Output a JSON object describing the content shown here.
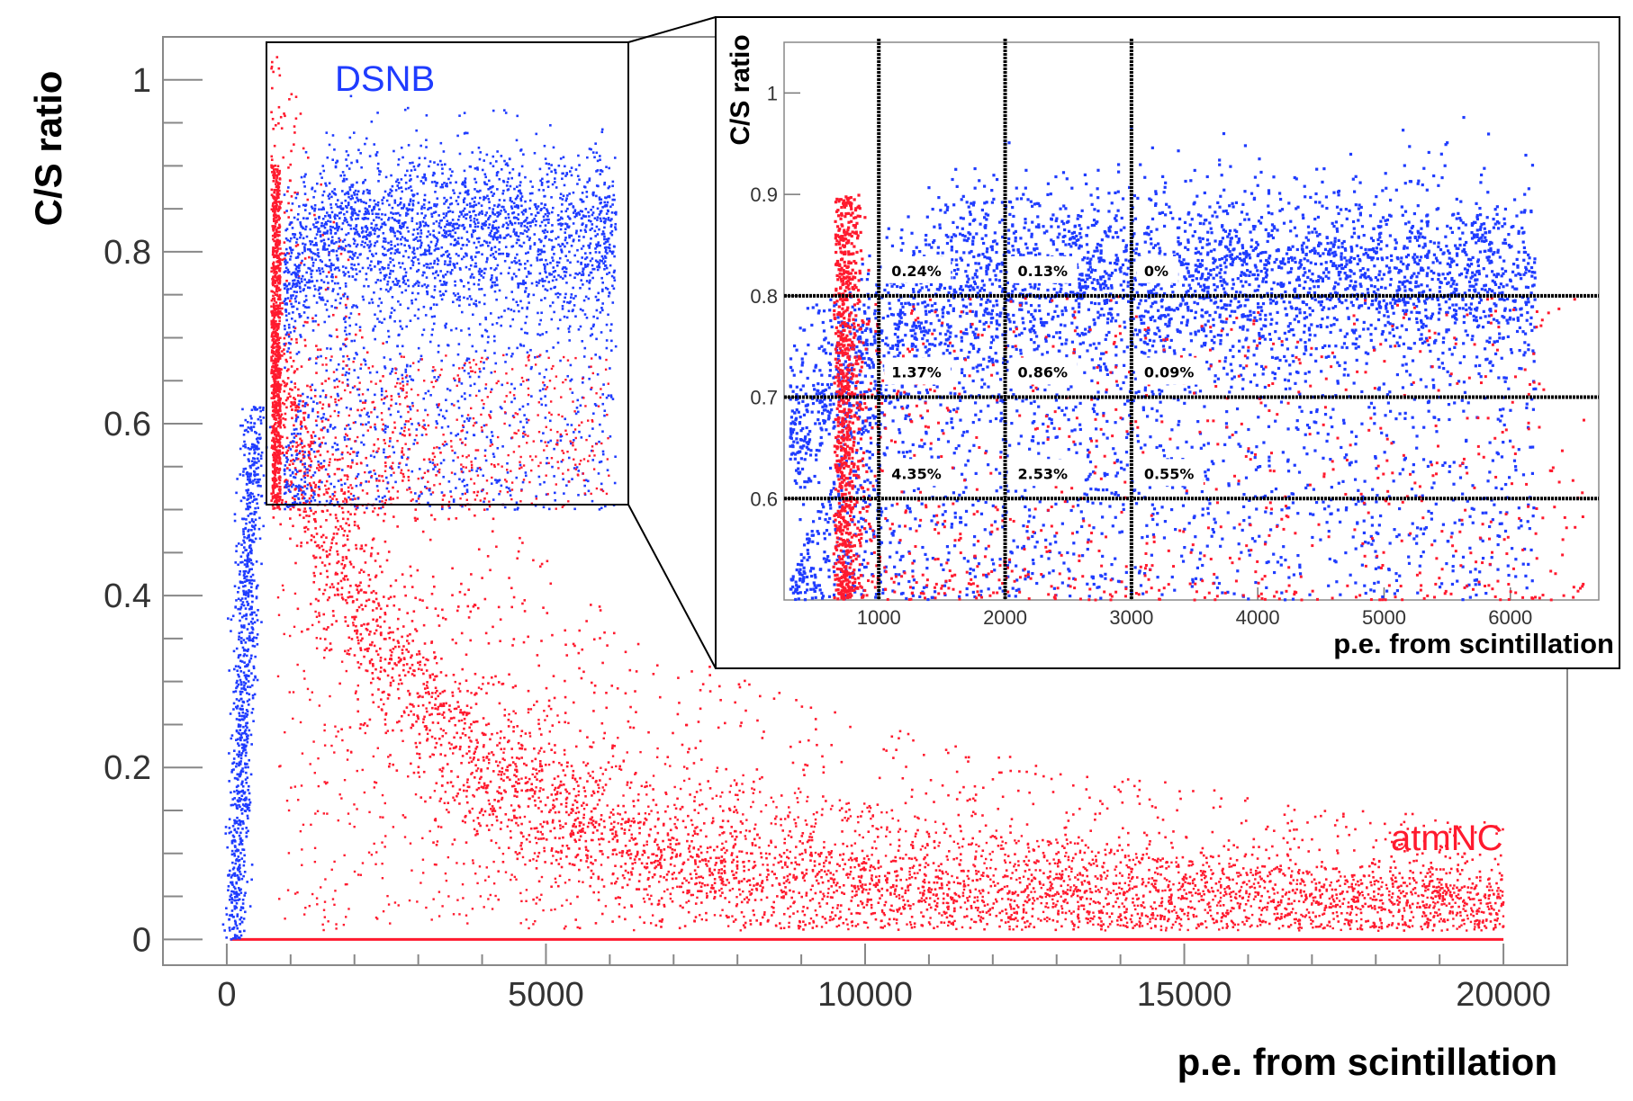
{
  "chart_data": [
    {
      "type": "scatter",
      "xlabel": "p.e. from scintillation",
      "ylabel": "C/S ratio",
      "xlim": [
        -1000,
        21000
      ],
      "ylim": [
        -0.03,
        1.05
      ],
      "x_ticks": [
        0,
        5000,
        10000,
        15000,
        20000
      ],
      "y_ticks": [
        0,
        0.2,
        0.4,
        0.6,
        0.8,
        1
      ],
      "x_tick_labels": [
        "0",
        "5000",
        "10000",
        "15000",
        "20000"
      ],
      "y_tick_labels": [
        "0",
        "0.2",
        "0.4",
        "0.6",
        "0.8",
        "1"
      ],
      "grid": false,
      "series": [
        {
          "name": "DSNB",
          "color": "#1f3cff",
          "description_points": [
            [
              150,
              0.0
            ],
            [
              300,
              0.3
            ],
            [
              400,
              0.5
            ],
            [
              1000,
              0.62
            ],
            [
              2000,
              0.8
            ],
            [
              3000,
              0.85
            ],
            [
              4500,
              0.82
            ],
            [
              6000,
              0.8
            ]
          ]
        },
        {
          "name": "atmNC",
          "color": "#ff1a2e",
          "description_points": [
            [
              700,
              0.7
            ],
            [
              1000,
              0.5
            ],
            [
              2000,
              0.28
            ],
            [
              3000,
              0.18
            ],
            [
              5000,
              0.1
            ],
            [
              7000,
              0.07
            ],
            [
              10000,
              0.05
            ],
            [
              15000,
              0.04
            ],
            [
              20000,
              0.03
            ]
          ]
        }
      ],
      "zoom_region": {
        "x": [
          700,
          6000
        ],
        "y": [
          0.5,
          1.0
        ]
      }
    },
    {
      "type": "scatter",
      "xlabel": "p.e. from scintillation",
      "ylabel": "C/S ratio",
      "xlim": [
        250,
        6700
      ],
      "ylim": [
        0.5,
        1.05
      ],
      "x_ticks": [
        1000,
        2000,
        3000,
        4000,
        5000,
        6000
      ],
      "y_ticks": [
        0.6,
        0.7,
        0.8,
        0.9,
        1
      ],
      "x_tick_labels": [
        "1000",
        "2000",
        "3000",
        "4000",
        "5000",
        "6000"
      ],
      "y_tick_labels": [
        "0.6",
        "0.7",
        "0.8",
        "0.9",
        "1"
      ],
      "cut_lines_x": [
        1000,
        2000,
        3000
      ],
      "cut_lines_y": [
        0.6,
        0.7,
        0.8
      ],
      "cells": [
        {
          "x": 1000,
          "y": 0.8,
          "label": "0.24%"
        },
        {
          "x": 2000,
          "y": 0.8,
          "label": "0.13%"
        },
        {
          "x": 3000,
          "y": 0.8,
          "label": "0%"
        },
        {
          "x": 1000,
          "y": 0.7,
          "label": "1.37%"
        },
        {
          "x": 2000,
          "y": 0.7,
          "label": "0.86%"
        },
        {
          "x": 3000,
          "y": 0.7,
          "label": "0.09%"
        },
        {
          "x": 1000,
          "y": 0.6,
          "label": "4.35%"
        },
        {
          "x": 2000,
          "y": 0.6,
          "label": "2.53%"
        },
        {
          "x": 3000,
          "y": 0.6,
          "label": "0.55%"
        }
      ]
    }
  ]
}
